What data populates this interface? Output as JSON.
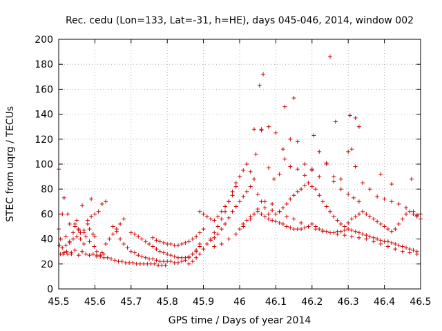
{
  "chart_data": {
    "type": "scatter",
    "title": "Rec. cedu (Lon=133, Lat=-31, h=HE), days 045-046, 2014, window 002",
    "xlabel": "GPS time / Days of year 2014",
    "ylabel": "STEC from uqrg / TECUs",
    "xlim": [
      45.5,
      46.5
    ],
    "ylim": [
      0,
      200
    ],
    "xticks": [
      45.5,
      45.6,
      45.7,
      45.8,
      45.9,
      46.0,
      46.1,
      46.2,
      46.3,
      46.4,
      46.5
    ],
    "xtick_labels": [
      "45.5",
      "45.6",
      "45.7",
      "45.8",
      "45.9",
      "46",
      "46.1",
      "46.2",
      "46.3",
      "46.4",
      "46.5"
    ],
    "yticks": [
      0,
      20,
      40,
      60,
      80,
      100,
      120,
      140,
      160,
      180,
      200
    ],
    "ytick_labels": [
      "0",
      "20",
      "40",
      "60",
      "80",
      "100",
      "120",
      "140",
      "160",
      "180",
      "200"
    ],
    "grid": true,
    "marker": "+",
    "color": "#cc0000",
    "series": [
      {
        "name": "stec",
        "x": [
          45.5,
          45.5,
          45.502,
          45.505,
          45.51,
          45.512,
          45.515,
          45.52,
          45.522,
          45.525,
          45.53,
          45.535,
          45.54,
          45.545,
          45.55,
          45.555,
          45.56,
          45.565,
          45.57,
          45.575,
          45.58,
          45.585,
          45.59,
          45.595,
          45.6,
          45.505,
          45.515,
          45.525,
          45.535,
          45.545,
          45.555,
          45.565,
          45.575,
          45.585,
          45.595,
          45.605,
          45.615,
          45.625,
          45.51,
          45.52,
          45.53,
          45.54,
          45.55,
          45.56,
          45.57,
          45.58,
          45.59,
          45.6,
          45.61,
          45.62,
          45.63,
          45.53,
          45.545,
          45.555,
          45.57,
          45.585,
          45.598,
          45.605,
          45.62,
          45.63,
          45.64,
          45.65,
          45.66,
          45.67,
          45.68,
          45.605,
          45.615,
          45.625,
          45.635,
          45.645,
          45.655,
          45.665,
          45.675,
          45.685,
          45.695,
          45.705,
          45.715,
          45.725,
          45.735,
          45.745,
          45.755,
          45.765,
          45.775,
          45.785,
          45.795,
          45.65,
          45.66,
          45.67,
          45.68,
          45.69,
          45.7,
          45.71,
          45.72,
          45.73,
          45.74,
          45.75,
          45.76,
          45.77,
          45.78,
          45.79,
          45.8,
          45.81,
          45.82,
          45.83,
          45.84,
          45.85,
          45.86,
          45.87,
          45.88,
          45.89,
          45.7,
          45.71,
          45.72,
          45.73,
          45.74,
          45.75,
          45.76,
          45.77,
          45.78,
          45.79,
          45.8,
          45.81,
          45.82,
          45.83,
          45.84,
          45.85,
          45.86,
          45.87,
          45.88,
          45.89,
          45.76,
          45.77,
          45.78,
          45.79,
          45.8,
          45.81,
          45.82,
          45.83,
          45.84,
          45.85,
          45.86,
          45.87,
          45.88,
          45.89,
          45.9,
          45.86,
          45.87,
          45.88,
          45.89,
          45.9,
          45.91,
          45.92,
          45.93,
          45.94,
          45.95,
          45.96,
          45.97,
          45.98,
          45.89,
          45.9,
          45.91,
          45.92,
          45.93,
          45.94,
          45.95,
          45.96,
          45.97,
          45.98,
          45.99,
          45.92,
          45.93,
          45.94,
          45.95,
          45.96,
          45.97,
          45.98,
          45.99,
          46.0,
          46.01,
          46.02,
          46.03,
          45.99,
          46.0,
          46.01,
          46.02,
          46.03,
          46.04,
          46.05,
          46.06,
          46.07,
          46.08,
          46.09,
          46.1,
          46.11,
          46.12,
          46.13,
          46.14,
          46.15,
          46.16,
          46.17,
          46.18,
          46.19,
          46.2,
          46.21,
          46.22,
          46.23,
          46.24,
          46.25,
          46.26,
          46.27,
          46.28,
          46.29,
          46.3,
          46.31,
          46.32,
          46.33,
          46.34,
          46.35,
          46.36,
          46.37,
          46.38,
          46.39,
          46.4,
          46.41,
          46.42,
          46.43,
          46.44,
          46.45,
          46.46,
          46.47,
          46.48,
          46.49,
          46.5,
          46.0,
          46.01,
          46.02,
          46.03,
          46.04,
          46.05,
          46.06,
          46.07,
          46.08,
          46.09,
          46.1,
          46.11,
          46.12,
          46.13,
          46.14,
          46.15,
          46.16,
          46.17,
          46.18,
          46.19,
          46.2,
          46.21,
          46.22,
          46.23,
          46.24,
          46.25,
          46.26,
          46.27,
          46.28,
          46.29,
          46.3,
          46.31,
          46.32,
          46.33,
          46.34,
          46.35,
          46.36,
          46.37,
          46.38,
          46.39,
          46.4,
          46.41,
          46.42,
          46.43,
          46.44,
          46.45,
          46.46,
          46.47,
          46.48,
          46.49,
          46.02,
          46.04,
          46.06,
          46.08,
          46.1,
          46.12,
          46.14,
          46.16,
          46.18,
          46.2,
          46.22,
          46.24,
          46.26,
          46.28,
          46.3,
          46.32,
          46.34,
          46.36,
          46.38,
          46.4,
          46.42,
          46.44,
          46.46,
          46.48,
          46.5,
          45.93,
          45.95,
          45.97,
          45.99,
          46.01,
          46.03,
          46.05,
          46.07,
          46.09,
          46.11,
          46.13,
          46.15,
          46.17,
          46.19,
          46.21,
          46.23,
          46.25,
          46.27,
          46.29,
          46.31,
          46.33,
          46.35,
          46.37,
          46.39,
          46.41,
          46.43,
          46.45,
          46.47,
          46.49,
          46.045,
          46.06,
          46.08,
          46.095,
          46.11,
          46.125,
          46.14,
          46.16,
          46.18,
          46.2,
          46.22,
          46.24,
          46.26,
          46.28,
          46.3,
          46.315,
          46.33,
          46.055,
          46.065,
          46.125,
          46.15,
          46.205,
          46.25,
          46.265,
          46.305,
          46.31,
          46.32,
          46.33,
          46.39,
          46.42,
          46.475,
          46.49
        ],
        "y": [
          96,
          48,
          35,
          40,
          60,
          28,
          73,
          42,
          30,
          60,
          38,
          28,
          45,
          52,
          55,
          48,
          40,
          67,
          36,
          42,
          55,
          48,
          72,
          44,
          42,
          28,
          29,
          28,
          29,
          31,
          27,
          30,
          28,
          27,
          28,
          26,
          27,
          28,
          33,
          35,
          37,
          40,
          42,
          45,
          47,
          52,
          58,
          60,
          62,
          68,
          70,
          52,
          50,
          47,
          45,
          38,
          34,
          30,
          29,
          36,
          40,
          44,
          48,
          52,
          56,
          27,
          26,
          25,
          25,
          24,
          23,
          22,
          22,
          21,
          21,
          21,
          20,
          20,
          20,
          20,
          20,
          20,
          19,
          19,
          19,
          50,
          46,
          40,
          36,
          33,
          30,
          29,
          27,
          26,
          25,
          24,
          24,
          23,
          22,
          22,
          22,
          22,
          21,
          21,
          22,
          23,
          25,
          28,
          31,
          36,
          45,
          44,
          42,
          40,
          38,
          36,
          34,
          32,
          30,
          29,
          28,
          27,
          26,
          25,
          25,
          25,
          26,
          28,
          30,
          34,
          41,
          39,
          38,
          37,
          36,
          36,
          35,
          35,
          36,
          37,
          38,
          40,
          42,
          45,
          48,
          20,
          22,
          25,
          28,
          32,
          36,
          40,
          45,
          50,
          56,
          62,
          70,
          78,
          62,
          60,
          58,
          56,
          55,
          58,
          62,
          66,
          70,
          75,
          82,
          39,
          41,
          44,
          48,
          52,
          57,
          62,
          66,
          70,
          74,
          78,
          82,
          85,
          90,
          95,
          100,
          94,
          88,
          76,
          70,
          65,
          60,
          63,
          60,
          62,
          65,
          68,
          72,
          75,
          78,
          80,
          83,
          85,
          82,
          80,
          75,
          70,
          66,
          62,
          58,
          55,
          52,
          50,
          53,
          56,
          58,
          60,
          62,
          60,
          58,
          56,
          54,
          52,
          50,
          48,
          46,
          48,
          52,
          56,
          60,
          62,
          60,
          58,
          56,
          48,
          52,
          55,
          58,
          60,
          62,
          60,
          58,
          56,
          55,
          54,
          53,
          52,
          50,
          49,
          48,
          48,
          48,
          49,
          50,
          52,
          50,
          48,
          47,
          46,
          45,
          45,
          46,
          46,
          47,
          48,
          47,
          46,
          45,
          44,
          43,
          42,
          41,
          40,
          39,
          38,
          38,
          37,
          36,
          35,
          34,
          33,
          32,
          31,
          30,
          100,
          128,
          128,
          130,
          125,
          112,
          120,
          118,
          100,
          95,
          110,
          100,
          90,
          88,
          110,
          98,
          85,
          80,
          74,
          72,
          70,
          68,
          65,
          62,
          60,
          34,
          36,
          40,
          44,
          50,
          56,
          64,
          70,
          68,
          62,
          58,
          56,
          53,
          50,
          48,
          46,
          45,
          44,
          43,
          42,
          41,
          40,
          38,
          36,
          34,
          32,
          30,
          29,
          28,
          108,
          127,
          97,
          88,
          92,
          104,
          98,
          96,
          91,
          96,
          90,
          101,
          86,
          80,
          76,
          73,
          70,
          163,
          172,
          146,
          153,
          123,
          186,
          134,
          139,
          112,
          137,
          130,
          92,
          84,
          88,
          59
        ]
      }
    ]
  }
}
